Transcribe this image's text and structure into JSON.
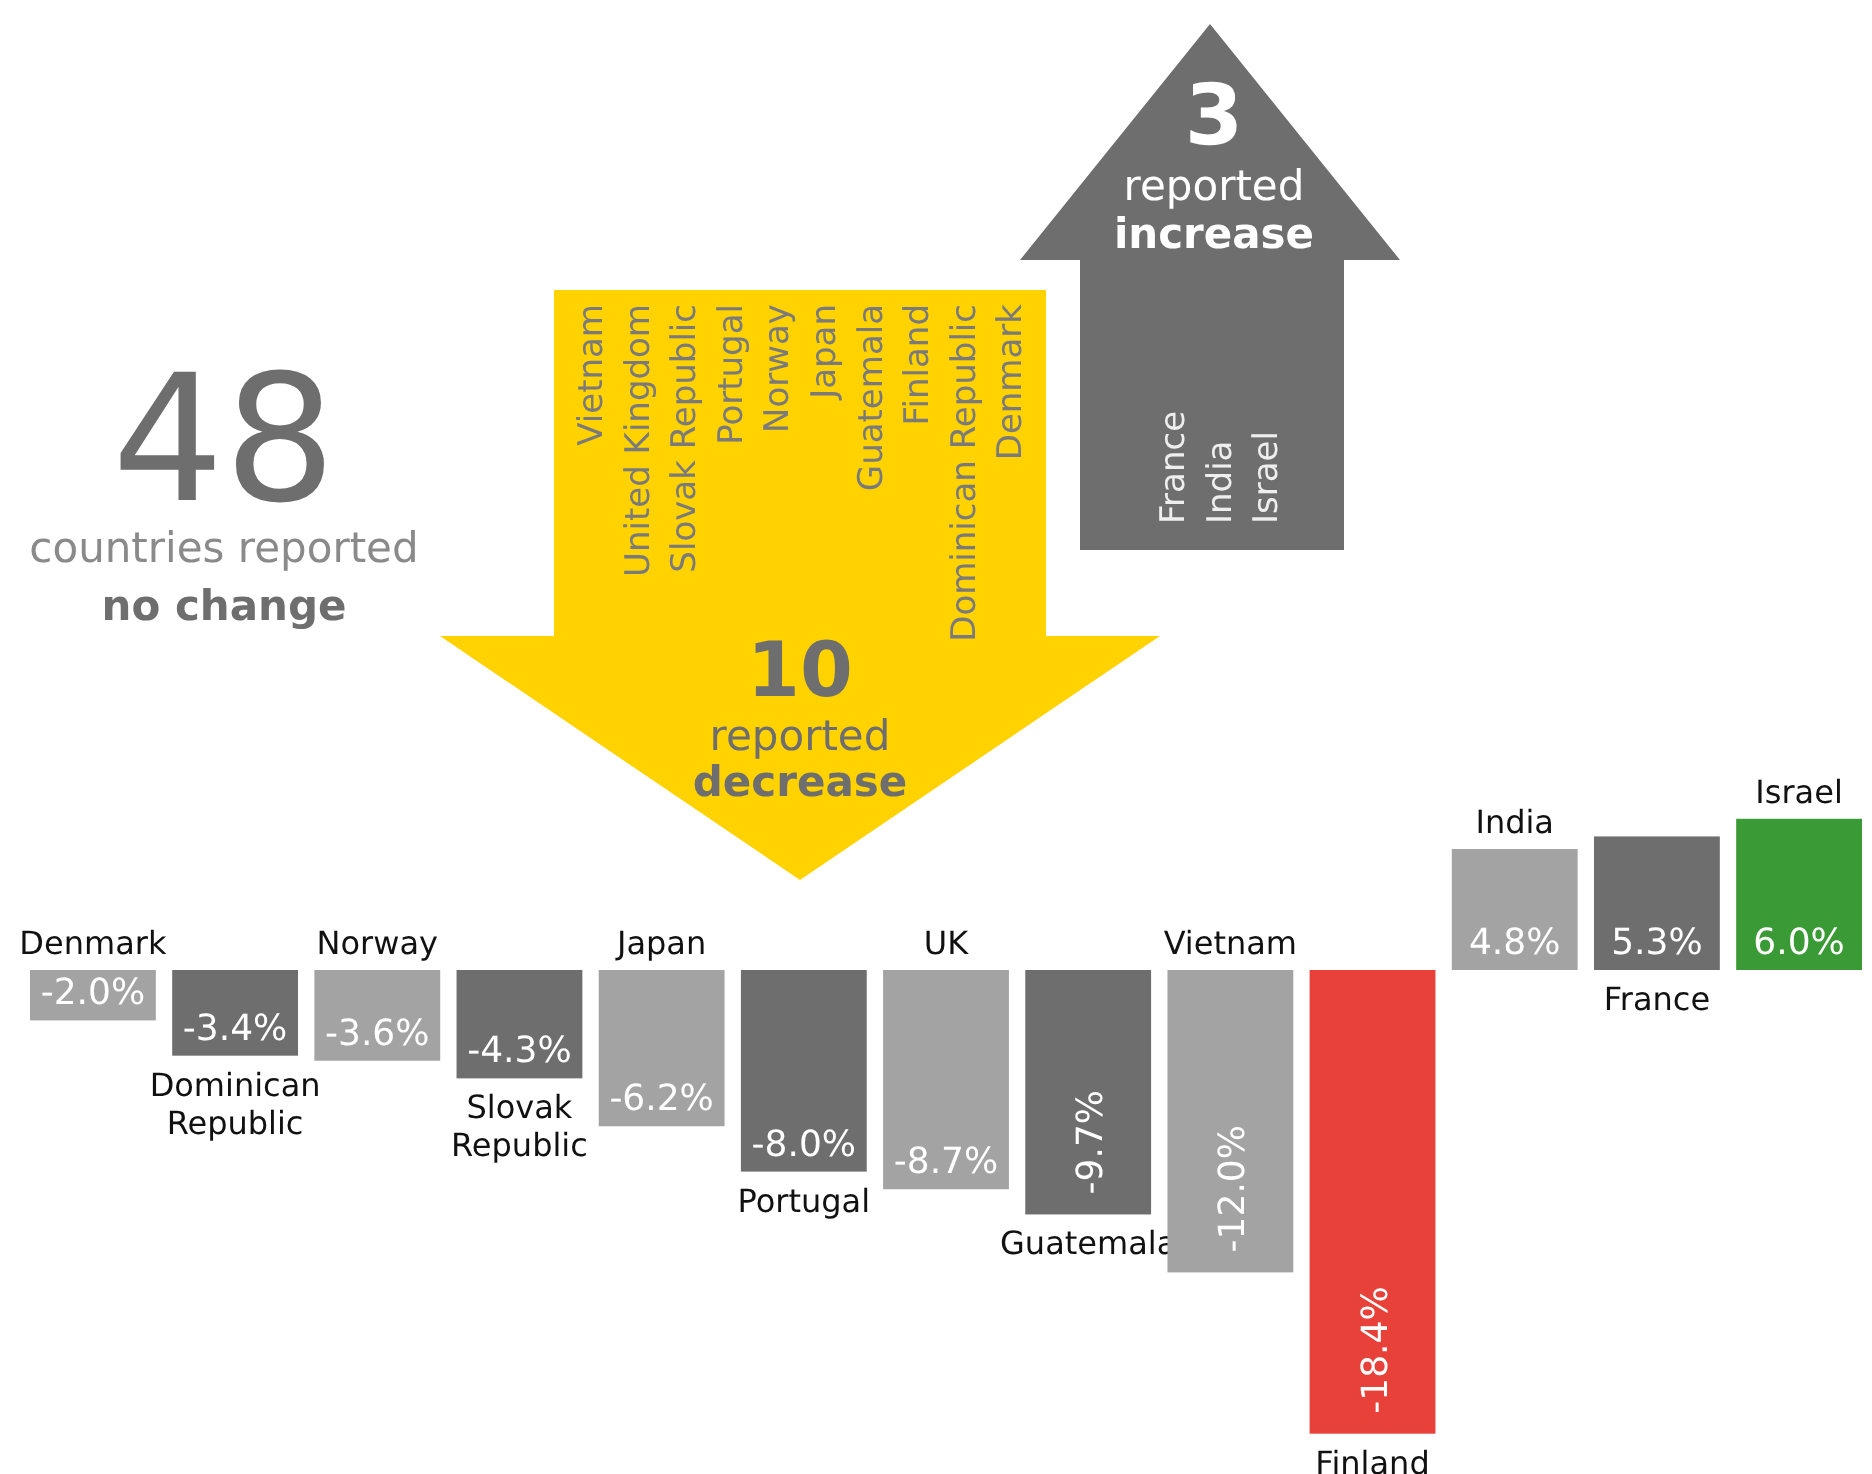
{
  "chart_data": {
    "type": "bar",
    "categories": [
      "Denmark",
      "Dominican Republic",
      "Norway",
      "Slovak Republic",
      "Japan",
      "Portugal",
      "UK",
      "Guatemala",
      "Vietnam",
      "Finland",
      "India",
      "France",
      "Israel"
    ],
    "values": [
      -2.0,
      -3.4,
      -3.6,
      -4.3,
      -6.2,
      -8.0,
      -8.7,
      -9.7,
      -12.0,
      -18.4,
      4.8,
      5.3,
      6.0
    ],
    "colors": [
      "#a3a3a3",
      "#6e6e6e",
      "#a3a3a3",
      "#6e6e6e",
      "#a3a3a3",
      "#6e6e6e",
      "#a3a3a3",
      "#6e6e6e",
      "#a3a3a3",
      "#e8413a",
      "#a3a3a3",
      "#6e6e6e",
      "#3a9a36"
    ],
    "value_labels": [
      "-2.0%",
      "-3.4%",
      "-3.6%",
      "-4.3%",
      "-6.2%",
      "-8.0%",
      "-8.7%",
      "-9.7%",
      "-12.0%",
      "-18.4%",
      "4.8%",
      "5.3%",
      "6.0%"
    ],
    "annotations": [
      "48",
      "countries reported",
      "no change",
      "10",
      "reported",
      "decrease",
      "3",
      "reported",
      "increase",
      "Vietnam",
      "United Kingdom",
      "Slovak Republic",
      "Portugal",
      "Norway",
      "Japan",
      "Guatemala",
      "Finland",
      "Dominican Republic",
      "Denmark",
      "France",
      "India",
      "Israel"
    ]
  }
}
